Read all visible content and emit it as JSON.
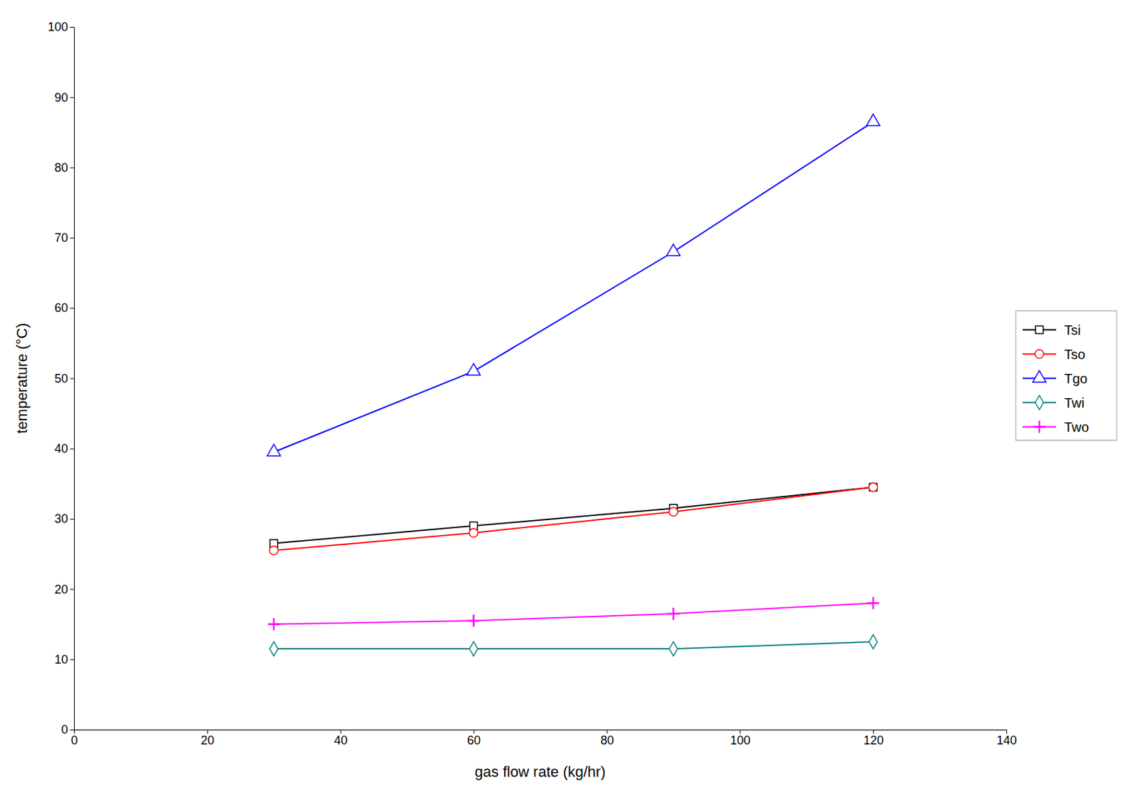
{
  "chart_data": {
    "type": "line",
    "x_label": "gas flow rate (kg/hr)",
    "y_label": "temperature (°C)",
    "x": [
      30,
      60,
      90,
      120
    ],
    "series": [
      {
        "name": "Tsi",
        "color": "#000000",
        "marker": "square",
        "values": [
          26.5,
          29.0,
          31.5,
          34.5
        ]
      },
      {
        "name": "Tso",
        "color": "#ff0000",
        "marker": "circle",
        "values": [
          25.5,
          28.0,
          31.0,
          34.5
        ]
      },
      {
        "name": "Tgo",
        "color": "#0000ff",
        "marker": "triangle",
        "values": [
          39.5,
          51.0,
          68.0,
          86.5
        ]
      },
      {
        "name": "Twi",
        "color": "#008080",
        "marker": "diamond",
        "values": [
          11.5,
          11.5,
          11.5,
          12.5
        ]
      },
      {
        "name": "Two",
        "color": "#ff00ff",
        "marker": "plus",
        "values": [
          15.0,
          15.5,
          16.5,
          18.0
        ]
      }
    ],
    "xlim": [
      0,
      140
    ],
    "ylim": [
      0,
      100
    ],
    "xticks": [
      0,
      20,
      40,
      60,
      80,
      100,
      120,
      140
    ],
    "yticks": [
      0,
      10,
      20,
      30,
      40,
      50,
      60,
      70,
      80,
      90,
      100
    ],
    "grid": false,
    "legend": "right"
  }
}
